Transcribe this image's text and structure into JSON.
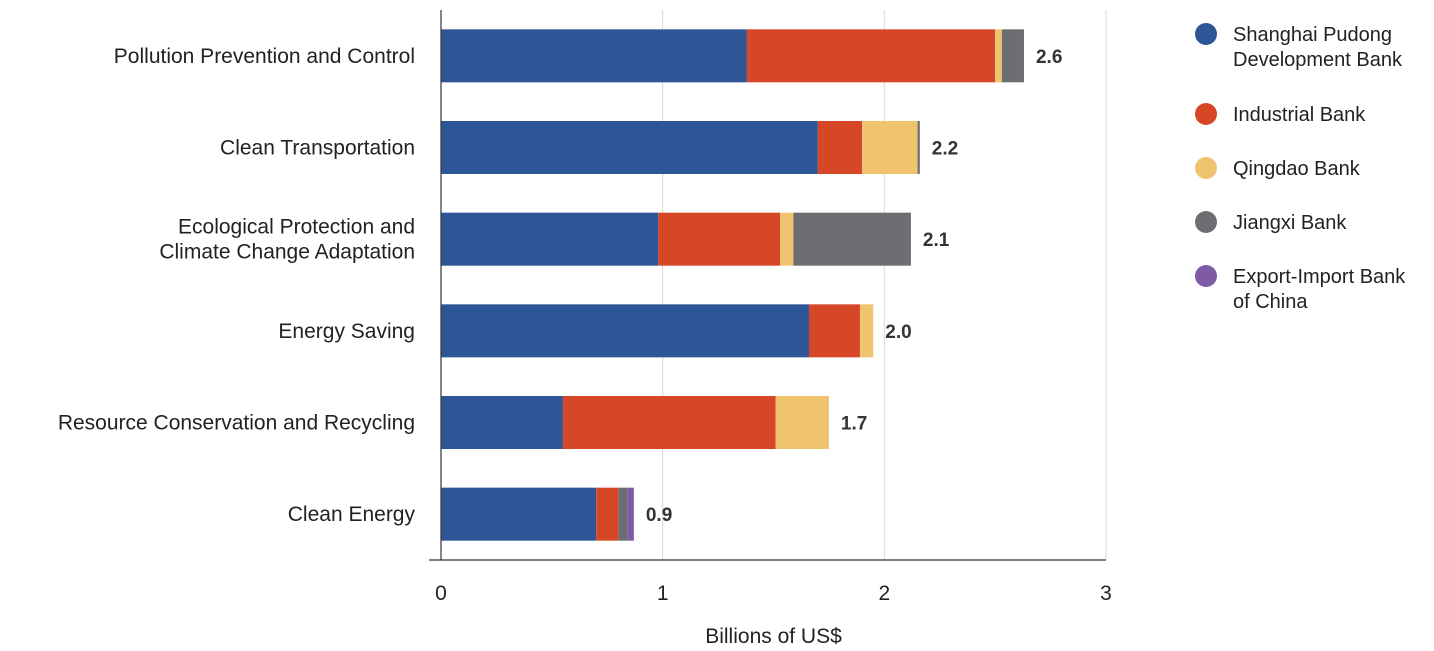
{
  "chart_data": {
    "type": "bar",
    "orientation": "horizontal",
    "stacked": true,
    "categories": [
      "Pollution Prevention and Control",
      "Clean Transportation",
      "Ecological Protection and Climate Change Adaptation",
      "Energy Saving",
      "Resource Conservation and Recycling",
      "Clean Energy"
    ],
    "category_label_lines": [
      [
        "Pollution Prevention and Control"
      ],
      [
        "Clean Transportation"
      ],
      [
        "Ecological Protection and",
        "Climate Change Adaptation"
      ],
      [
        "Energy Saving"
      ],
      [
        "Resource Conservation and Recycling"
      ],
      [
        "Clean Energy"
      ]
    ],
    "series": [
      {
        "name": "Shanghai Pudong Development Bank",
        "legend_lines": [
          "Shanghai Pudong",
          "Development Bank"
        ],
        "color": "#2E5596",
        "values": [
          1.38,
          1.7,
          0.98,
          1.66,
          0.55,
          0.7
        ]
      },
      {
        "name": "Industrial Bank",
        "legend_lines": [
          "Industrial Bank"
        ],
        "color": "#D64727",
        "values": [
          1.12,
          0.2,
          0.55,
          0.23,
          0.96,
          0.1
        ]
      },
      {
        "name": "Qingdao Bank",
        "legend_lines": [
          "Qingdao Bank"
        ],
        "color": "#F0C46F",
        "values": [
          0.03,
          0.25,
          0.06,
          0.06,
          0.24,
          0.0
        ]
      },
      {
        "name": "Jiangxi Bank",
        "legend_lines": [
          "Jiangxi Bank"
        ],
        "color": "#6D6E71",
        "values": [
          0.1,
          0.01,
          0.53,
          0.0,
          0.0,
          0.04
        ]
      },
      {
        "name": "Export-Import Bank of China",
        "legend_lines": [
          "Export-Import Bank",
          "of China"
        ],
        "color": "#7F5BA6",
        "values": [
          0.0,
          0.0,
          0.0,
          0.0,
          0.0,
          0.03
        ]
      }
    ],
    "totals": [
      "2.6",
      "2.2",
      "2.1",
      "2.0",
      "1.7",
      "0.9"
    ],
    "xlabel": "Billions of US$",
    "xlim": [
      0,
      3
    ],
    "xticks": [
      "0",
      "1",
      "2",
      "3"
    ],
    "grid": "vertical",
    "legend_position": "right"
  }
}
